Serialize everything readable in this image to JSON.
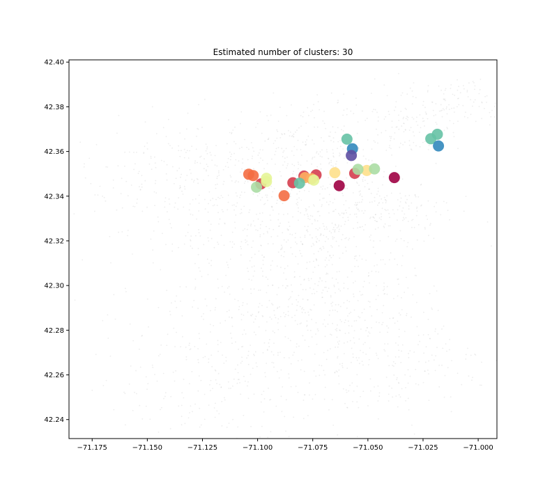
{
  "chart_data": {
    "type": "scatter",
    "title": "Estimated number of clusters: 30",
    "xlabel": "",
    "ylabel": "",
    "xlim": [
      -71.1855,
      -70.9915
    ],
    "ylim": [
      42.2315,
      42.401
    ],
    "x_ticks": [
      -71.175,
      -71.15,
      -71.125,
      -71.1,
      -71.075,
      -71.05,
      -71.025,
      -71.0
    ],
    "x_tick_labels": [
      "−71.175",
      "−71.150",
      "−71.125",
      "−71.100",
      "−71.075",
      "−71.050",
      "−71.025",
      "−71.000"
    ],
    "y_ticks": [
      42.24,
      42.26,
      42.28,
      42.3,
      42.32,
      42.34,
      42.36,
      42.38,
      42.4
    ],
    "y_tick_labels": [
      "42.24",
      "42.26",
      "42.28",
      "42.30",
      "42.32",
      "42.34",
      "42.36",
      "42.38",
      "42.40"
    ],
    "grid": false,
    "legend": "none",
    "background_points_color": "#cccccc",
    "background_regions": [
      {
        "center": [
          -71.13,
          42.35
        ],
        "spread": [
          0.028,
          0.012
        ],
        "count": 260
      },
      {
        "center": [
          -71.1,
          42.325
        ],
        "spread": [
          0.03,
          0.015
        ],
        "count": 240
      },
      {
        "center": [
          -71.075,
          42.32
        ],
        "spread": [
          0.022,
          0.025
        ],
        "count": 320
      },
      {
        "center": [
          -71.07,
          42.29
        ],
        "spread": [
          0.03,
          0.022
        ],
        "count": 300
      },
      {
        "center": [
          -71.095,
          42.275
        ],
        "spread": [
          0.04,
          0.018
        ],
        "count": 220
      },
      {
        "center": [
          -71.12,
          42.255
        ],
        "spread": [
          0.03,
          0.012
        ],
        "count": 160
      },
      {
        "center": [
          -71.075,
          42.365
        ],
        "spread": [
          0.02,
          0.01
        ],
        "count": 200
      },
      {
        "center": [
          -71.045,
          42.335
        ],
        "spread": [
          0.018,
          0.008
        ],
        "count": 160
      },
      {
        "center": [
          -71.03,
          42.375
        ],
        "spread": [
          0.012,
          0.008
        ],
        "count": 120
      },
      {
        "center": [
          -71.005,
          42.383
        ],
        "spread": [
          0.01,
          0.005
        ],
        "count": 70
      },
      {
        "center": [
          -71.04,
          42.265
        ],
        "spread": [
          0.02,
          0.015
        ],
        "count": 140
      }
    ],
    "series": [
      {
        "color": "#9e0142",
        "points": [
          [
            -71.038,
            42.3483
          ],
          [
            -71.063,
            42.3447
          ]
        ]
      },
      {
        "color": "#d53e4f",
        "points": [
          [
            -71.079,
            42.349
          ],
          [
            -71.056,
            42.3502
          ],
          [
            -71.0985,
            42.3455
          ],
          [
            -71.084,
            42.346
          ],
          [
            -71.0735,
            42.3495
          ]
        ]
      },
      {
        "color": "#f46d43",
        "points": [
          [
            -71.104,
            42.3498
          ],
          [
            -71.088,
            42.3402
          ],
          [
            -71.102,
            42.3492
          ]
        ]
      },
      {
        "color": "#fdae61",
        "points": [
          [
            -71.0785,
            42.3483
          ],
          [
            -71.0755,
            42.3478
          ]
        ]
      },
      {
        "color": "#fee08b",
        "points": [
          [
            -71.065,
            42.3505
          ],
          [
            -71.0505,
            42.3515
          ]
        ]
      },
      {
        "color": "#e6f598",
        "points": [
          [
            -71.096,
            42.348
          ],
          [
            -71.0745,
            42.3472
          ],
          [
            -71.096,
            42.3465
          ]
        ]
      },
      {
        "color": "#abdda4",
        "points": [
          [
            -71.1005,
            42.344
          ],
          [
            -71.0545,
            42.352
          ],
          [
            -71.047,
            42.3522
          ]
        ]
      },
      {
        "color": "#66c2a5",
        "points": [
          [
            -71.081,
            42.3458
          ],
          [
            -71.0595,
            42.3655
          ],
          [
            -71.0215,
            42.3657
          ],
          [
            -71.0185,
            42.3677
          ]
        ]
      },
      {
        "color": "#3288bd",
        "points": [
          [
            -71.057,
            42.3612
          ],
          [
            -71.018,
            42.3625
          ]
        ]
      },
      {
        "color": "#5e4fa2",
        "points": [
          [
            -71.0575,
            42.3582
          ]
        ]
      }
    ]
  }
}
